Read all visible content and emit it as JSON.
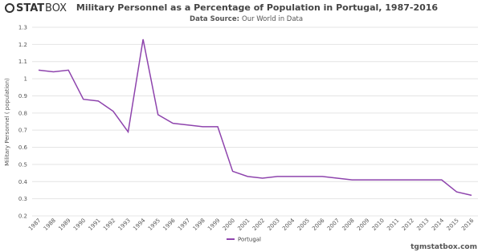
{
  "branding": {
    "logo_bold": "STAT",
    "logo_light": "BOX",
    "footer": "tgmstatbox.com"
  },
  "chart_data": {
    "type": "line",
    "title": "Military Personnel as a Percentage of Population in Portugal, 1987-2016",
    "subtitle_label": "Data Source:",
    "subtitle_source": "Our World in Data",
    "y_label": "Military Personnel ( population)",
    "categories": [
      "1987",
      "1988",
      "1989",
      "1990",
      "1991",
      "1992",
      "1993",
      "1994",
      "1995",
      "1996",
      "1997",
      "1998",
      "1999",
      "2000",
      "2001",
      "2002",
      "2003",
      "2004",
      "2005",
      "2006",
      "2007",
      "2008",
      "2009",
      "2010",
      "2011",
      "2012",
      "2013",
      "2014",
      "2015",
      "2016"
    ],
    "series": [
      {
        "name": "Portugal",
        "color": "#8e44ad",
        "values": [
          1.05,
          1.04,
          1.05,
          0.88,
          0.87,
          0.81,
          0.69,
          1.23,
          0.79,
          0.74,
          0.73,
          0.72,
          0.72,
          0.46,
          0.43,
          0.42,
          0.43,
          0.43,
          0.43,
          0.43,
          0.42,
          0.41,
          0.41,
          0.41,
          0.41,
          0.41,
          0.41,
          0.41,
          0.34,
          0.32
        ]
      }
    ],
    "ylim": [
      0.2,
      1.3
    ],
    "yticks": [
      0.2,
      0.3,
      0.4,
      0.5,
      0.6,
      0.7,
      0.8,
      0.9,
      1,
      1.1,
      1.2,
      1.3
    ],
    "grid": true
  }
}
